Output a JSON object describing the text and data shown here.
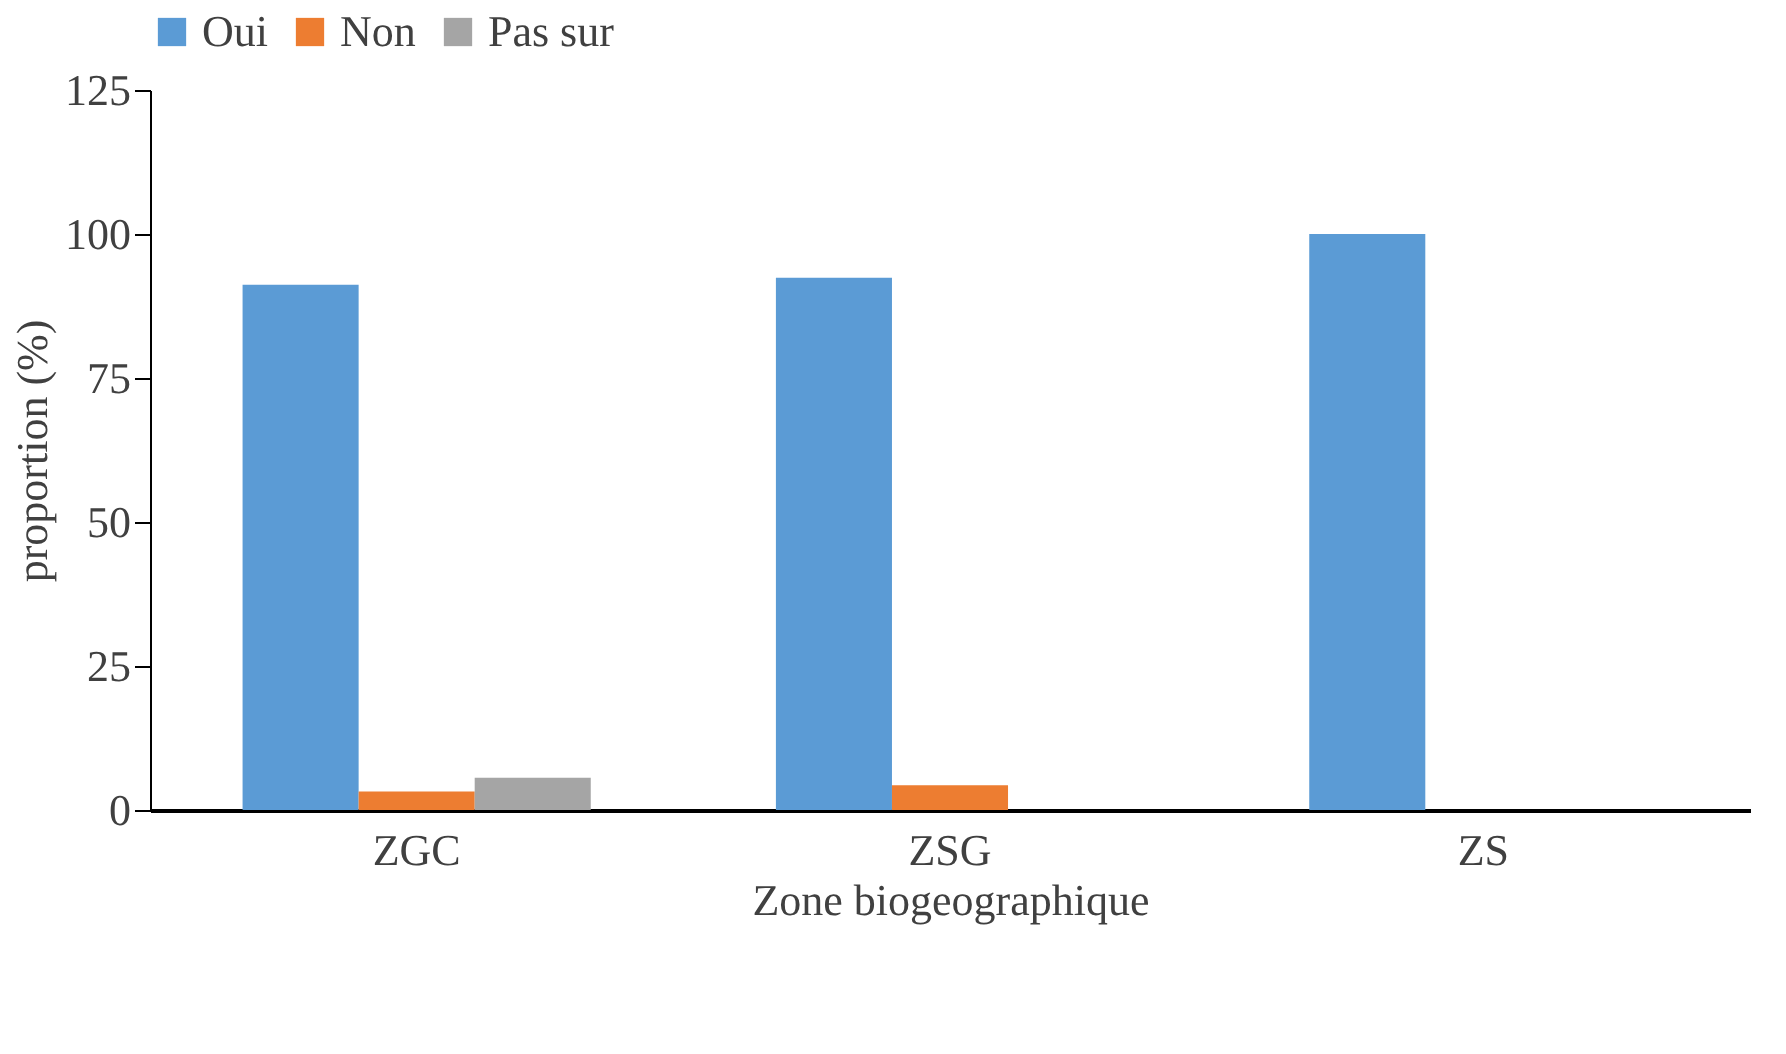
{
  "chart_data": {
    "type": "bar",
    "xlabel": "Zone biogeographique",
    "ylabel": "proportion (%)",
    "categories": [
      "ZGC",
      "ZSG",
      "ZS"
    ],
    "series": [
      {
        "name": "Oui",
        "color": "#5b9bd5",
        "values": [
          91.2,
          92.4,
          100
        ]
      },
      {
        "name": "Non",
        "color": "#ed7d31",
        "values": [
          3.2,
          4.3,
          0
        ]
      },
      {
        "name": "Pas sur",
        "color": "#a5a5a5",
        "values": [
          5.6,
          0,
          0
        ]
      }
    ],
    "ylim": [
      0,
      125
    ],
    "yticks": [
      0,
      25,
      50,
      75,
      100,
      125
    ],
    "grid": false,
    "legend": "top"
  }
}
